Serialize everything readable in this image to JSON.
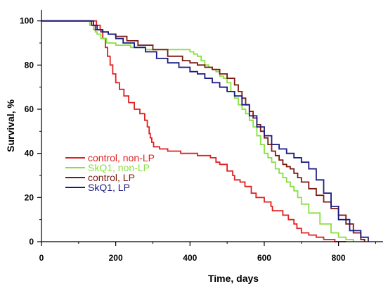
{
  "chart_data": {
    "type": "line",
    "step": true,
    "title": "",
    "xlabel": "Time, days",
    "ylabel": "Survival, %",
    "xlim": [
      0,
      920
    ],
    "ylim": [
      0,
      105
    ],
    "xticks": [
      0,
      200,
      400,
      600,
      800
    ],
    "yticks": [
      0,
      20,
      40,
      60,
      80,
      100
    ],
    "grid": false,
    "legend_position": "lower-left",
    "series": [
      {
        "name": "control, non-LP",
        "color": "#e02020",
        "x": [
          0,
          130,
          148,
          158,
          165,
          172,
          178,
          185,
          192,
          200,
          210,
          222,
          235,
          250,
          265,
          278,
          285,
          290,
          293,
          297,
          302,
          318,
          340,
          375,
          420,
          455,
          470,
          480,
          500,
          515,
          520,
          535,
          548,
          565,
          578,
          600,
          618,
          622,
          650,
          665,
          680,
          688,
          700,
          720,
          740,
          760,
          790,
          800,
          820
        ],
        "y": [
          100,
          100,
          98,
          96,
          92,
          88,
          84,
          80,
          76,
          72,
          69,
          66,
          63,
          60,
          58,
          55,
          52,
          49,
          47,
          45,
          43,
          42,
          41,
          40,
          39,
          38,
          36,
          35,
          32,
          30,
          28,
          27,
          25,
          22,
          20,
          18,
          16,
          14,
          12,
          10,
          8,
          6,
          4,
          3,
          2,
          1,
          0,
          0,
          0
        ]
      },
      {
        "name": "SkQ1, non-LP",
        "color": "#88e040",
        "x": [
          0,
          120,
          130,
          140,
          145,
          150,
          160,
          175,
          200,
          240,
          280,
          330,
          380,
          400,
          410,
          420,
          430,
          440,
          450,
          460,
          470,
          480,
          490,
          500,
          510,
          520,
          530,
          540,
          550,
          560,
          570,
          580,
          590,
          600,
          610,
          620,
          630,
          640,
          650,
          660,
          670,
          680,
          690,
          700,
          720,
          750,
          780,
          800,
          820,
          840
        ],
        "y": [
          100,
          100,
          98,
          96,
          95,
          94,
          92,
          90,
          89,
          88,
          87,
          87,
          87,
          86,
          85,
          84,
          82,
          80,
          79,
          78,
          77,
          75,
          74,
          72,
          68,
          65,
          62,
          60,
          58,
          55,
          52,
          48,
          44,
          40,
          38,
          36,
          33,
          31,
          29,
          27,
          25,
          23,
          20,
          17,
          13,
          8,
          4,
          2,
          1,
          0
        ]
      },
      {
        "name": "control, LP",
        "color": "#7a1a10",
        "x": [
          0,
          125,
          135,
          145,
          160,
          180,
          200,
          230,
          260,
          300,
          340,
          380,
          400,
          420,
          440,
          460,
          480,
          500,
          520,
          530,
          540,
          550,
          560,
          570,
          580,
          590,
          600,
          610,
          620,
          630,
          640,
          650,
          660,
          670,
          680,
          690,
          700,
          720,
          740,
          760,
          780,
          800,
          820,
          840,
          860,
          870
        ],
        "y": [
          100,
          100,
          98,
          96,
          95,
          94,
          93,
          91,
          89,
          87,
          84,
          82,
          81,
          80,
          79,
          78,
          76,
          74,
          71,
          68,
          65,
          62,
          59,
          56,
          53,
          50,
          47,
          44,
          41,
          39,
          37,
          35,
          34,
          33,
          31,
          29,
          27,
          24,
          21,
          18,
          15,
          12,
          8,
          4,
          1,
          0
        ]
      },
      {
        "name": "SkQ1, LP",
        "color": "#1a1a80",
        "x": [
          0,
          130,
          140,
          150,
          165,
          180,
          200,
          220,
          250,
          280,
          310,
          340,
          370,
          400,
          420,
          440,
          460,
          480,
          500,
          520,
          540,
          560,
          580,
          600,
          620,
          640,
          660,
          680,
          700,
          720,
          740,
          760,
          780,
          800,
          830,
          860,
          880
        ],
        "y": [
          100,
          100,
          98,
          96,
          95,
          94,
          92,
          90,
          88,
          86,
          83,
          81,
          79,
          77,
          76,
          74,
          72,
          70,
          68,
          66,
          62,
          57,
          52,
          48,
          44,
          42,
          40,
          38,
          36,
          33,
          28,
          22,
          16,
          10,
          5,
          2,
          0
        ]
      }
    ]
  }
}
